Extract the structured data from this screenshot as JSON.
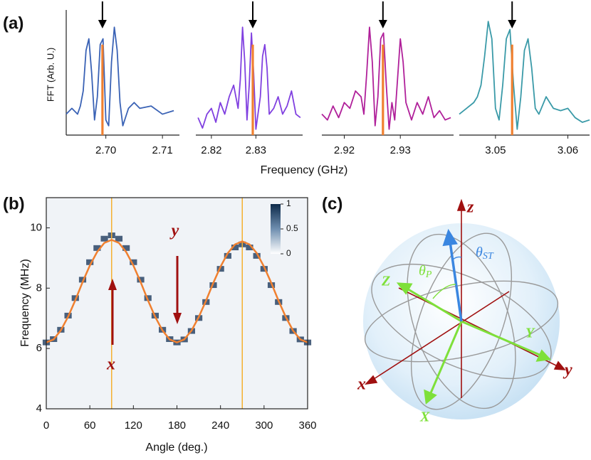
{
  "chart_data": [
    {
      "type": "line",
      "panel": "(a)",
      "ylabel": "FFT (Arb. U.)",
      "xlabel": "Frequency (GHz)",
      "ylim": [
        0,
        1
      ],
      "marker_color": "#f08030",
      "subplots": [
        {
          "color": "#3a62b5",
          "xlim": [
            2.693,
            2.713
          ],
          "xticks": [
            {
              "value": 2.7,
              "label": "2.70"
            },
            2.71
          ],
          "x": [
            2.693,
            2.694,
            2.695,
            2.6955,
            2.696,
            2.6965,
            2.697,
            2.6975,
            2.698,
            2.6985,
            2.699,
            2.6995,
            2.7,
            2.7005,
            2.701,
            2.7015,
            2.702,
            2.7025,
            2.703,
            2.704,
            2.705,
            2.706,
            2.708,
            2.71,
            2.712
          ],
          "values": [
            0.15,
            0.2,
            0.15,
            0.22,
            0.35,
            0.7,
            0.8,
            0.5,
            0.1,
            0.3,
            0.75,
            0.8,
            0.1,
            0.05,
            0.6,
            0.9,
            0.7,
            0.25,
            0.05,
            0.2,
            0.25,
            0.2,
            0.22,
            0.15,
            0.18
          ],
          "marker": {
            "x": 2.6994,
            "y": 0.75
          }
        },
        {
          "color": "#8040e0",
          "xlim": [
            2.8165,
            2.8405
          ],
          "xticks": [
            2.82,
            2.83
          ],
          "x": [
            2.817,
            2.818,
            2.819,
            2.82,
            2.821,
            2.822,
            2.823,
            2.824,
            2.825,
            2.826,
            2.8265,
            2.827,
            2.8275,
            2.828,
            2.8285,
            2.829,
            2.8295,
            2.83,
            2.831,
            2.8315,
            2.832,
            2.8325,
            2.833,
            2.834,
            2.835,
            2.836,
            2.837,
            2.838,
            2.839,
            2.84
          ],
          "values": [
            0.12,
            0.03,
            0.15,
            0.2,
            0.08,
            0.25,
            0.15,
            0.3,
            0.4,
            0.2,
            0.45,
            0.9,
            0.6,
            0.1,
            0.4,
            0.85,
            0.5,
            0.02,
            0.3,
            0.65,
            0.75,
            0.55,
            0.15,
            0.2,
            0.3,
            0.15,
            0.22,
            0.35,
            0.15,
            0.12
          ],
          "marker": {
            "x": 2.8293,
            "y": 0.75
          }
        },
        {
          "color": "#b0209a",
          "xlim": [
            2.916,
            2.9395
          ],
          "xticks": [
            2.92,
            2.93
          ],
          "x": [
            2.916,
            2.917,
            2.918,
            2.919,
            2.92,
            2.921,
            2.922,
            2.923,
            2.9235,
            2.924,
            2.9245,
            2.925,
            2.9255,
            2.926,
            2.9265,
            2.927,
            2.9275,
            2.928,
            2.9285,
            2.929,
            2.9295,
            2.93,
            2.9305,
            2.931,
            2.932,
            2.933,
            2.934,
            2.935,
            2.936,
            2.937,
            2.938,
            2.939
          ],
          "values": [
            0.15,
            0.1,
            0.22,
            0.12,
            0.25,
            0.2,
            0.35,
            0.3,
            0.15,
            0.5,
            0.9,
            0.6,
            0.05,
            0.3,
            0.8,
            0.85,
            0.4,
            0.02,
            0.25,
            0.1,
            0.45,
            0.8,
            0.6,
            0.25,
            0.1,
            0.25,
            0.15,
            0.3,
            0.12,
            0.18,
            0.1,
            0.12
          ],
          "marker": {
            "x": 2.9269,
            "y": 0.75
          }
        },
        {
          "color": "#3a9aa8",
          "xlim": [
            3.045,
            3.063
          ],
          "xticks": [
            3.05,
            3.06
          ],
          "x": [
            3.045,
            3.046,
            3.047,
            3.0475,
            3.048,
            3.0485,
            3.049,
            3.0495,
            3.05,
            3.0505,
            3.051,
            3.0515,
            3.052,
            3.0525,
            3.053,
            3.0535,
            3.054,
            3.0545,
            3.055,
            3.0555,
            3.056,
            3.057,
            3.058,
            3.059,
            3.06,
            3.061,
            3.062,
            3.063
          ],
          "values": [
            0.15,
            0.2,
            0.25,
            0.3,
            0.4,
            0.65,
            0.95,
            0.8,
            0.2,
            0.1,
            0.4,
            0.8,
            0.88,
            0.4,
            0.02,
            0.3,
            0.7,
            0.8,
            0.55,
            0.2,
            0.15,
            0.3,
            0.2,
            0.18,
            0.2,
            0.12,
            0.08,
            0.1
          ],
          "marker": {
            "x": 3.0523,
            "y": 0.75
          }
        }
      ]
    },
    {
      "type": "heatmap",
      "panel": "(b)",
      "xlabel": "Angle (deg.)",
      "ylabel": "Frequency (MHz)",
      "xlim": [
        0,
        360
      ],
      "xticks": [
        0,
        60,
        120,
        180,
        240,
        300,
        360
      ],
      "ylim": [
        4,
        11
      ],
      "yticks": [
        4,
        6,
        8,
        10
      ],
      "x": [
        0,
        10,
        20,
        30,
        40,
        50,
        60,
        70,
        80,
        90,
        100,
        110,
        120,
        130,
        140,
        150,
        160,
        170,
        180,
        190,
        200,
        210,
        220,
        230,
        240,
        250,
        260,
        270,
        280,
        290,
        300,
        310,
        320,
        330,
        340,
        350,
        360
      ],
      "series": [
        {
          "color": "#1e3a5c",
          "values": [
            6.2,
            6.31,
            6.62,
            7.09,
            7.67,
            8.28,
            8.86,
            9.33,
            9.64,
            9.75,
            9.64,
            9.33,
            8.86,
            8.28,
            7.67,
            7.09,
            6.62,
            6.31,
            6.2,
            6.3,
            6.58,
            7.01,
            7.54,
            8.1,
            8.64,
            9.07,
            9.35,
            9.45,
            9.35,
            9.07,
            8.64,
            8.1,
            7.54,
            7.01,
            6.58,
            6.3,
            6.2
          ]
        },
        {
          "color": "#f08030",
          "values": [
            6.2,
            6.3,
            6.6,
            7.05,
            7.6,
            8.2,
            8.75,
            9.2,
            9.5,
            9.6,
            9.5,
            9.2,
            8.75,
            8.2,
            7.6,
            7.05,
            6.6,
            6.3,
            6.2,
            6.3,
            6.59,
            7.04,
            7.58,
            8.17,
            8.71,
            9.16,
            9.45,
            9.55,
            9.45,
            9.16,
            8.71,
            8.17,
            7.58,
            7.04,
            6.59,
            6.3,
            6.2
          ]
        }
      ],
      "vlines": {
        "color": "#f5b030",
        "values": [
          90,
          270
        ]
      },
      "colorbar": {
        "lim": [
          0,
          1
        ],
        "ticks": [
          1,
          0.5,
          0
        ]
      },
      "annotations": [
        {
          "text": "x"
        },
        {
          "text": "y"
        }
      ]
    }
  ],
  "diagram": {
    "panel": "(c)",
    "axes": [
      "z",
      "x",
      "y"
    ],
    "rotated_axes": [
      "Z",
      "X",
      "Y"
    ],
    "angles": [
      {
        "symbol": "θ",
        "sub": "P"
      },
      {
        "symbol": "θ",
        "sub": "ST"
      }
    ]
  }
}
